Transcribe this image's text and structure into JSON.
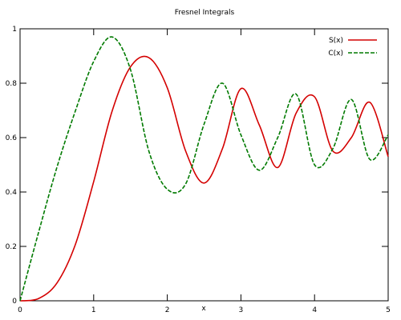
{
  "chart_data": {
    "type": "line",
    "title": "Fresnel Integrals",
    "xlabel": "x",
    "ylabel": "",
    "xlim": [
      0,
      5
    ],
    "ylim": [
      0,
      1
    ],
    "x_ticks": [
      0,
      1,
      2,
      3,
      4,
      5
    ],
    "x_tick_labels": [
      "0",
      "1",
      "2",
      "3",
      "4",
      "5"
    ],
    "y_ticks": [
      0,
      0.2,
      0.4,
      0.6,
      0.8,
      1
    ],
    "y_tick_labels": [
      "0",
      "0.2",
      "0.4",
      "0.6",
      "0.8",
      "1"
    ],
    "grid": false,
    "legend_position": "top-right",
    "series": [
      {
        "name": "S(x)",
        "color": "#d40000",
        "style": "solid",
        "x": [
          0,
          0.25,
          0.5,
          0.75,
          1.0,
          1.25,
          1.5,
          1.75,
          2.0,
          2.25,
          2.5,
          2.75,
          3.0,
          3.25,
          3.5,
          3.75,
          4.0,
          4.25,
          4.5,
          4.75,
          5.0
        ],
        "values": [
          0,
          0.008,
          0.065,
          0.206,
          0.438,
          0.697,
          0.86,
          0.894,
          0.783,
          0.55,
          0.433,
          0.56,
          0.78,
          0.646,
          0.49,
          0.69,
          0.75,
          0.55,
          0.6,
          0.73,
          0.53
        ]
      },
      {
        "name": "C(x)",
        "color": "#007a00",
        "style": "dashed",
        "x": [
          0,
          0.25,
          0.5,
          0.75,
          1.0,
          1.25,
          1.5,
          1.75,
          2.0,
          2.25,
          2.5,
          2.75,
          3.0,
          3.25,
          3.5,
          3.75,
          4.0,
          4.25,
          4.5,
          4.75,
          5.0
        ],
        "values": [
          0,
          0.25,
          0.49,
          0.697,
          0.88,
          0.97,
          0.85,
          0.55,
          0.41,
          0.43,
          0.65,
          0.8,
          0.61,
          0.48,
          0.6,
          0.76,
          0.5,
          0.56,
          0.74,
          0.52,
          0.61
        ]
      }
    ]
  }
}
